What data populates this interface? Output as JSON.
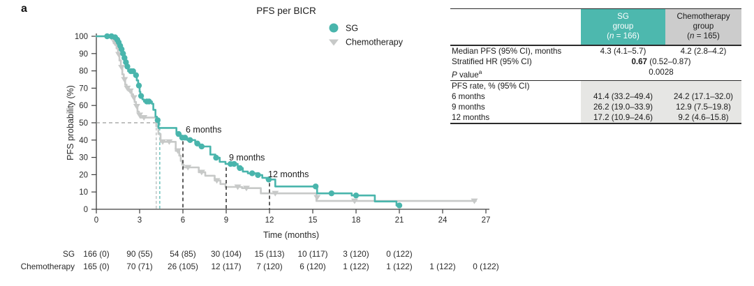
{
  "panel_label": "a",
  "chart_data": {
    "type": "line",
    "subtype": "kaplan-meier-step",
    "title": "PFS per BICR",
    "xlabel": "Time (months)",
    "ylabel": "PFS probability (%)",
    "xlim": [
      0,
      27
    ],
    "x_ticks": [
      0,
      3,
      6,
      9,
      12,
      15,
      18,
      21,
      24,
      27
    ],
    "ylim": [
      0,
      100
    ],
    "y_ticks": [
      0,
      10,
      20,
      30,
      40,
      50,
      60,
      70,
      80,
      90,
      100
    ],
    "grid": "off",
    "legend_position": "top-right-inside",
    "colors": {
      "sg": "#49b5ac",
      "chemo": "#c7c9c8",
      "axis": "#3d3d3d",
      "dash_black": "#1a1a1a",
      "dash_gray": "#9a9c9b"
    },
    "legend": [
      {
        "name": "SG",
        "marker": "circle"
      },
      {
        "name": "Chemotherapy",
        "marker": "triangle-down"
      }
    ],
    "annotations": [
      {
        "label": "6 months",
        "x": 6,
        "sg_value_pct": 41.4
      },
      {
        "label": "9 months",
        "x": 9,
        "sg_value_pct": 26.2
      },
      {
        "label": "12 months",
        "x": 12,
        "sg_value_pct": 17.2
      }
    ],
    "median_lines": {
      "y_pct": 50,
      "sg_median_months": 4.3,
      "chemo_median_months": 4.2
    },
    "series": [
      {
        "name": "SG",
        "steps": [
          [
            0,
            100
          ],
          [
            1.2,
            100
          ],
          [
            1.2,
            99.4
          ],
          [
            1.35,
            99.4
          ],
          [
            1.35,
            98
          ],
          [
            1.5,
            98
          ],
          [
            1.5,
            96.5
          ],
          [
            1.6,
            96.5
          ],
          [
            1.6,
            94.5
          ],
          [
            1.7,
            94.5
          ],
          [
            1.7,
            92.5
          ],
          [
            1.8,
            92.5
          ],
          [
            1.8,
            90
          ],
          [
            1.9,
            90
          ],
          [
            1.9,
            87.5
          ],
          [
            2.0,
            87.5
          ],
          [
            2.0,
            85
          ],
          [
            2.1,
            85
          ],
          [
            2.1,
            82.5
          ],
          [
            2.2,
            82.5
          ],
          [
            2.2,
            79.8
          ],
          [
            2.65,
            79.8
          ],
          [
            2.65,
            77.5
          ],
          [
            2.8,
            77.5
          ],
          [
            2.8,
            74.5
          ],
          [
            2.9,
            74.5
          ],
          [
            2.9,
            71.5
          ],
          [
            3.0,
            71.5
          ],
          [
            3.0,
            68
          ],
          [
            3.05,
            68
          ],
          [
            3.05,
            65.5
          ],
          [
            3.2,
            65.5
          ],
          [
            3.2,
            63.5
          ],
          [
            3.3,
            63.5
          ],
          [
            3.3,
            62.3
          ],
          [
            3.85,
            62.3
          ],
          [
            3.85,
            61
          ],
          [
            3.95,
            61
          ],
          [
            3.95,
            57.5
          ],
          [
            4.1,
            57.5
          ],
          [
            4.1,
            53.5
          ],
          [
            4.2,
            53.5
          ],
          [
            4.2,
            51.5
          ],
          [
            4.3,
            51.5
          ],
          [
            4.3,
            47
          ],
          [
            5.55,
            47
          ],
          [
            5.55,
            43.5
          ],
          [
            5.85,
            43.5
          ],
          [
            5.85,
            41.4
          ],
          [
            6.3,
            41.4
          ],
          [
            6.3,
            40
          ],
          [
            6.85,
            40
          ],
          [
            6.85,
            38
          ],
          [
            7.15,
            38
          ],
          [
            7.15,
            36.3
          ],
          [
            7.9,
            36.3
          ],
          [
            7.9,
            31.6
          ],
          [
            8.25,
            31.6
          ],
          [
            8.25,
            29.8
          ],
          [
            8.55,
            29.8
          ],
          [
            8.55,
            27.4
          ],
          [
            8.95,
            27.4
          ],
          [
            8.95,
            26.2
          ],
          [
            9.8,
            26.2
          ],
          [
            9.8,
            23.8
          ],
          [
            10.15,
            23.8
          ],
          [
            10.15,
            21.8
          ],
          [
            10.5,
            21.8
          ],
          [
            10.5,
            20.8
          ],
          [
            11.1,
            20.8
          ],
          [
            11.1,
            19.8
          ],
          [
            11.5,
            19.8
          ],
          [
            11.5,
            18.2
          ],
          [
            11.8,
            18.2
          ],
          [
            11.8,
            17.2
          ],
          [
            12.4,
            17.2
          ],
          [
            12.4,
            13.2
          ],
          [
            15.3,
            13.2
          ],
          [
            15.3,
            9.2
          ],
          [
            17.7,
            9.2
          ],
          [
            17.7,
            8.0
          ],
          [
            19.3,
            8.0
          ],
          [
            19.3,
            4.5
          ],
          [
            20.8,
            4.5
          ],
          [
            20.8,
            2.2
          ],
          [
            21.05,
            2.2
          ]
        ],
        "censor_marks": [
          [
            0.75,
            100
          ],
          [
            1.05,
            100
          ],
          [
            1.3,
            99.4
          ],
          [
            1.45,
            98
          ],
          [
            1.55,
            96.5
          ],
          [
            1.65,
            94.5
          ],
          [
            1.75,
            92.5
          ],
          [
            1.85,
            90
          ],
          [
            1.95,
            87.5
          ],
          [
            2.05,
            85
          ],
          [
            2.15,
            82.5
          ],
          [
            2.4,
            79.8
          ],
          [
            2.55,
            79.8
          ],
          [
            2.75,
            77.5
          ],
          [
            2.95,
            71.5
          ],
          [
            3.1,
            65.5
          ],
          [
            3.5,
            62.3
          ],
          [
            3.65,
            62.3
          ],
          [
            4.25,
            51.5
          ],
          [
            5.7,
            43.5
          ],
          [
            5.95,
            41.4
          ],
          [
            6.15,
            41.4
          ],
          [
            6.5,
            40
          ],
          [
            7.0,
            38
          ],
          [
            7.3,
            36.3
          ],
          [
            8.3,
            29.8
          ],
          [
            9.3,
            26.2
          ],
          [
            9.55,
            26.2
          ],
          [
            9.95,
            23.8
          ],
          [
            10.8,
            20.8
          ],
          [
            11.2,
            19.8
          ],
          [
            11.95,
            17.2
          ],
          [
            15.2,
            13.2
          ],
          [
            16.3,
            9.2
          ],
          [
            18.0,
            8.0
          ],
          [
            21.0,
            2.2
          ]
        ]
      },
      {
        "name": "Chemotherapy",
        "steps": [
          [
            0,
            100
          ],
          [
            1.05,
            100
          ],
          [
            1.05,
            98.2
          ],
          [
            1.2,
            98.2
          ],
          [
            1.2,
            96
          ],
          [
            1.4,
            96
          ],
          [
            1.4,
            93
          ],
          [
            1.5,
            93
          ],
          [
            1.5,
            89.5
          ],
          [
            1.6,
            89.5
          ],
          [
            1.6,
            86
          ],
          [
            1.7,
            86
          ],
          [
            1.7,
            82
          ],
          [
            1.8,
            82
          ],
          [
            1.8,
            78
          ],
          [
            1.9,
            78
          ],
          [
            1.9,
            75
          ],
          [
            2.0,
            75
          ],
          [
            2.0,
            72
          ],
          [
            2.1,
            72
          ],
          [
            2.1,
            70
          ],
          [
            2.25,
            70
          ],
          [
            2.25,
            68.4
          ],
          [
            2.45,
            68.4
          ],
          [
            2.45,
            66.5
          ],
          [
            2.55,
            66.5
          ],
          [
            2.55,
            64.5
          ],
          [
            2.65,
            64.5
          ],
          [
            2.65,
            62
          ],
          [
            2.75,
            62
          ],
          [
            2.75,
            59.5
          ],
          [
            2.85,
            59.5
          ],
          [
            2.85,
            56.5
          ],
          [
            2.95,
            56.5
          ],
          [
            2.95,
            54.5
          ],
          [
            3.05,
            54.5
          ],
          [
            3.05,
            53
          ],
          [
            4.15,
            53
          ],
          [
            4.15,
            48
          ],
          [
            4.3,
            48
          ],
          [
            4.3,
            43.5
          ],
          [
            4.45,
            43.5
          ],
          [
            4.45,
            39
          ],
          [
            5.5,
            39
          ],
          [
            5.5,
            33.8
          ],
          [
            5.75,
            33.8
          ],
          [
            5.75,
            31
          ],
          [
            5.85,
            31
          ],
          [
            5.85,
            28
          ],
          [
            5.95,
            28
          ],
          [
            5.95,
            25.8
          ],
          [
            6.05,
            25.8
          ],
          [
            6.05,
            24.2
          ],
          [
            7.1,
            24.2
          ],
          [
            7.1,
            21.4
          ],
          [
            7.55,
            21.4
          ],
          [
            7.55,
            19.4
          ],
          [
            8.2,
            19.4
          ],
          [
            8.2,
            16.6
          ],
          [
            8.6,
            16.6
          ],
          [
            8.6,
            14.6
          ],
          [
            8.95,
            14.6
          ],
          [
            8.95,
            12.9
          ],
          [
            10.1,
            12.9
          ],
          [
            10.1,
            12.2
          ],
          [
            11.4,
            12.2
          ],
          [
            11.4,
            9.2
          ],
          [
            15.25,
            9.2
          ],
          [
            15.25,
            4.8
          ],
          [
            26.3,
            4.8
          ]
        ],
        "censor_marks": [
          [
            1.3,
            96
          ],
          [
            1.55,
            89.5
          ],
          [
            1.75,
            82
          ],
          [
            1.95,
            75
          ],
          [
            2.15,
            70
          ],
          [
            2.35,
            68.4
          ],
          [
            2.6,
            64.5
          ],
          [
            2.8,
            59.5
          ],
          [
            3.0,
            54.5
          ],
          [
            3.3,
            53
          ],
          [
            4.6,
            39
          ],
          [
            5.05,
            39
          ],
          [
            5.65,
            33.8
          ],
          [
            6.35,
            24.2
          ],
          [
            7.3,
            21.4
          ],
          [
            8.35,
            16.6
          ],
          [
            9.8,
            12.9
          ],
          [
            10.4,
            12.2
          ],
          [
            12.4,
            9.2
          ],
          [
            15.3,
            6.8
          ],
          [
            17.9,
            4.8
          ],
          [
            26.2,
            4.8
          ]
        ]
      }
    ],
    "risk_table": {
      "times": [
        0,
        3,
        6,
        9,
        12,
        15,
        18,
        21,
        24,
        27
      ],
      "rows": [
        {
          "label": "SG",
          "values": [
            "166 (0)",
            "90 (55)",
            "54 (85)",
            "30 (104)",
            "15 (113)",
            "10 (117)",
            "3 (120)",
            "0 (122)"
          ]
        },
        {
          "label": "Chemotherapy",
          "values": [
            "165 (0)",
            "70 (71)",
            "26 (105)",
            "12 (117)",
            "7 (120)",
            "6 (120)",
            "1 (122)",
            "1 (122)",
            "1 (122)",
            "0 (122)"
          ]
        }
      ]
    }
  },
  "stats_table": {
    "colors": {
      "sg_header_bg": "#4db8ae",
      "chemo_header_bg": "#cccccc",
      "section_shade_bg": "#e6e6e4"
    },
    "header": {
      "sg": {
        "l1": "SG",
        "l2": "group",
        "n_pre": "(",
        "n_it": "n",
        "n_post": " = 166)"
      },
      "chemo": {
        "l1": "Chemotherapy",
        "l2": "group",
        "n_pre": "(",
        "n_it": "n",
        "n_post": " = 165)"
      }
    },
    "rows": {
      "median": {
        "label": "Median PFS (95% CI), months",
        "sg": "4.3 (4.1–5.7)",
        "chemo": "4.2 (2.8–4.2)"
      },
      "hr": {
        "label": "Stratified HR (95% CI)",
        "bold": "0.67",
        "rest": " (0.52–0.87)"
      },
      "pvalue": {
        "label_it": "P",
        "label_rest": " value",
        "sup": "a",
        "value": "0.0028"
      },
      "pfs_section": {
        "label": "PFS rate, % (95% CI)"
      },
      "m6": {
        "label": "6 months",
        "sg": "41.4 (33.2–49.4)",
        "chemo": "24.2 (17.1–32.0)"
      },
      "m9": {
        "label": "9 months",
        "sg": "26.2 (19.0–33.9)",
        "chemo": "12.9 (7.5–19.8)"
      },
      "m12": {
        "label": "12 months",
        "sg": "17.2 (10.9–24.6)",
        "chemo": "9.2 (4.6–15.8)"
      }
    }
  }
}
